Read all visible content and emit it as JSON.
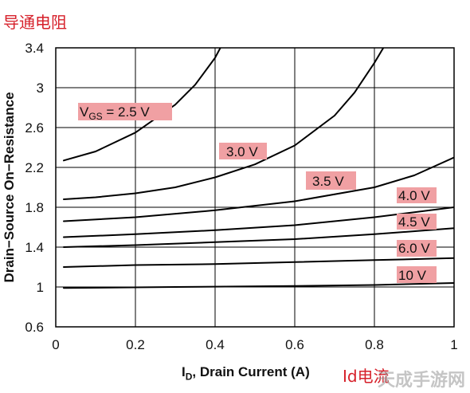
{
  "annotation_top_left": "导通电阻",
  "annotation_x_unit": "Id电流",
  "watermark": "天成手游网",
  "colors": {
    "label_highlight": "#f0a0a3",
    "annotation_text": "#d6202a",
    "curve": "#000000",
    "grid": "#000000"
  },
  "chart_data": {
    "type": "line",
    "title": "",
    "xlabel_prefix": "I",
    "xlabel_sub": "D",
    "xlabel_suffix": ", Drain Current (A)",
    "ylabel": "Drain−Source On−Resistance",
    "xlim": [
      0,
      1
    ],
    "ylim": [
      0.6,
      3.4
    ],
    "xticks": [
      "0",
      "0.2",
      "0.4",
      "0.6",
      "0.8",
      "1"
    ],
    "yticks": [
      "0.6",
      "1",
      "1.4",
      "1.8",
      "2.2",
      "2.6",
      "3",
      "3.4"
    ],
    "grid": true,
    "series": [
      {
        "name": "V_GS = 2.5 V",
        "label_main": "V",
        "label_sub": "GS",
        "label_rest": " = 2.5 V",
        "points": [
          [
            0.02,
            2.27
          ],
          [
            0.1,
            2.36
          ],
          [
            0.2,
            2.55
          ],
          [
            0.3,
            2.83
          ],
          [
            0.35,
            3.03
          ],
          [
            0.4,
            3.3
          ],
          [
            0.42,
            3.45
          ]
        ]
      },
      {
        "name": "3.0 V",
        "label_main": "3.0 V",
        "points": [
          [
            0.02,
            1.88
          ],
          [
            0.1,
            1.9
          ],
          [
            0.2,
            1.94
          ],
          [
            0.3,
            2.0
          ],
          [
            0.4,
            2.1
          ],
          [
            0.5,
            2.23
          ],
          [
            0.6,
            2.42
          ],
          [
            0.7,
            2.72
          ],
          [
            0.75,
            2.95
          ],
          [
            0.8,
            3.25
          ],
          [
            0.83,
            3.45
          ]
        ]
      },
      {
        "name": "3.5 V",
        "label_main": "3.5 V",
        "points": [
          [
            0.02,
            1.66
          ],
          [
            0.2,
            1.7
          ],
          [
            0.4,
            1.77
          ],
          [
            0.6,
            1.86
          ],
          [
            0.8,
            2.0
          ],
          [
            0.9,
            2.12
          ],
          [
            1.0,
            2.3
          ]
        ]
      },
      {
        "name": "4.0 V",
        "label_main": "4.0 V",
        "points": [
          [
            0.02,
            1.5
          ],
          [
            0.2,
            1.53
          ],
          [
            0.4,
            1.57
          ],
          [
            0.6,
            1.62
          ],
          [
            0.8,
            1.7
          ],
          [
            1.0,
            1.8
          ]
        ]
      },
      {
        "name": "4.5 V",
        "label_main": "4.5 V",
        "points": [
          [
            0.02,
            1.4
          ],
          [
            0.2,
            1.42
          ],
          [
            0.4,
            1.45
          ],
          [
            0.6,
            1.48
          ],
          [
            0.8,
            1.53
          ],
          [
            1.0,
            1.59
          ]
        ]
      },
      {
        "name": "6.0 V",
        "label_main": "6.0 V",
        "points": [
          [
            0.02,
            1.2
          ],
          [
            0.2,
            1.22
          ],
          [
            0.4,
            1.23
          ],
          [
            0.6,
            1.25
          ],
          [
            0.8,
            1.27
          ],
          [
            1.0,
            1.29
          ]
        ]
      },
      {
        "name": "10 V",
        "label_main": "10 V",
        "points": [
          [
            0.02,
            0.99
          ],
          [
            0.3,
            1.0
          ],
          [
            0.6,
            1.01
          ],
          [
            0.8,
            1.02
          ],
          [
            1.0,
            1.04
          ]
        ]
      }
    ]
  }
}
